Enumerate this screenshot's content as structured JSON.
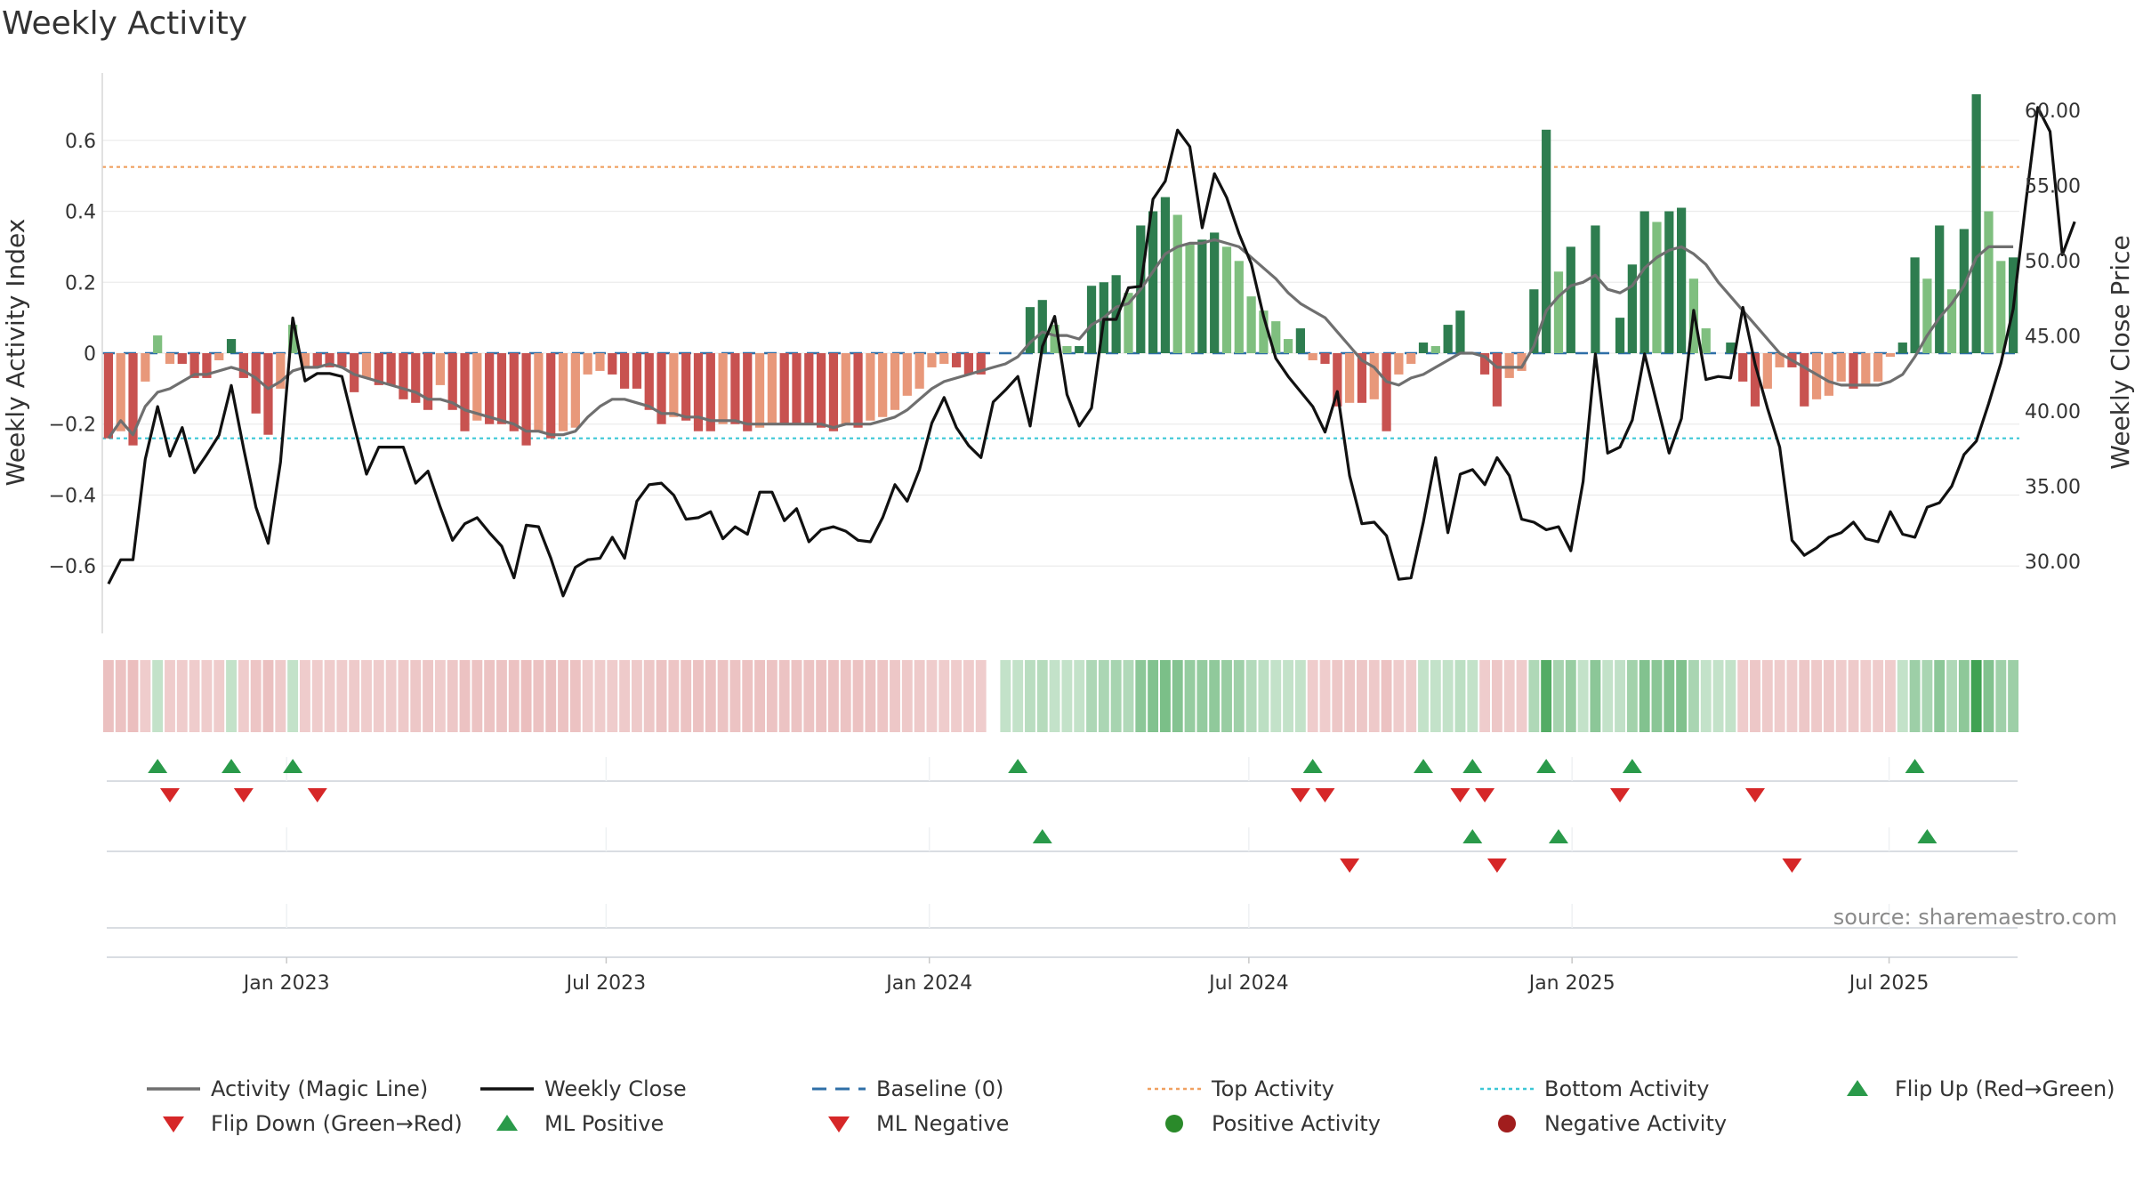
{
  "chart_data": {
    "type": "bar",
    "title": "Weekly Activity",
    "ylabel": "Weekly Activity Index",
    "y2label": "Weekly Close Price",
    "ylim": [
      -0.79,
      0.79
    ],
    "y2lim": [
      25.2,
      62.5
    ],
    "yticks": [
      -0.6,
      -0.4,
      -0.2,
      0,
      0.2,
      0.4,
      0.6
    ],
    "ytick_labels": [
      "−0.6",
      "−0.4",
      "−0.2",
      "0",
      "0.2",
      "0.4",
      "0.6"
    ],
    "y2ticks": [
      30,
      35,
      40,
      45,
      50,
      55,
      60
    ],
    "y2tick_labels": [
      "30.00",
      "35.00",
      "40.00",
      "45.00",
      "50.00",
      "55.00",
      "60.00"
    ],
    "x_range_weeks": [
      0,
      156
    ],
    "x_ticks": [
      {
        "label": "Jan 2023",
        "week": 15
      },
      {
        "label": "Jul 2023",
        "week": 41
      },
      {
        "label": "Jan 2024",
        "week": 67.3
      },
      {
        "label": "Jul 2024",
        "week": 93.3
      },
      {
        "label": "Jan 2025",
        "week": 119.6
      },
      {
        "label": "Jul 2025",
        "week": 145.4
      }
    ],
    "top_activity": 0.525,
    "bottom_activity": -0.24,
    "baseline": 0,
    "activity_weekly": [
      -0.24,
      -0.22,
      -0.26,
      -0.08,
      0.05,
      -0.03,
      -0.03,
      -0.07,
      -0.07,
      -0.02,
      0.04,
      -0.07,
      -0.17,
      -0.23,
      -0.1,
      0.08,
      -0.04,
      -0.04,
      -0.04,
      -0.04,
      -0.11,
      -0.07,
      -0.09,
      -0.09,
      -0.13,
      -0.14,
      -0.16,
      -0.09,
      -0.16,
      -0.22,
      -0.19,
      -0.2,
      -0.2,
      -0.22,
      -0.26,
      -0.22,
      -0.24,
      -0.22,
      -0.21,
      -0.06,
      -0.05,
      -0.06,
      -0.1,
      -0.1,
      -0.16,
      -0.2,
      -0.18,
      -0.19,
      -0.22,
      -0.22,
      -0.2,
      -0.2,
      -0.22,
      -0.21,
      -0.2,
      -0.2,
      -0.2,
      -0.2,
      -0.21,
      -0.22,
      -0.2,
      -0.21,
      -0.19,
      -0.18,
      -0.16,
      -0.12,
      -0.1,
      -0.04,
      -0.03,
      -0.04,
      -0.06,
      -0.06,
      null,
      0.0,
      0.0,
      0.13,
      0.15,
      0.08,
      0.02,
      0.02,
      0.19,
      0.2,
      0.22,
      0.17,
      0.36,
      0.4,
      0.44,
      0.39,
      0.31,
      0.32,
      0.34,
      0.3,
      0.26,
      0.16,
      0.12,
      0.09,
      0.04,
      0.07,
      -0.02,
      -0.03,
      -0.15,
      -0.14,
      -0.14,
      -0.13,
      -0.22,
      -0.06,
      -0.03,
      0.03,
      0.02,
      0.08,
      0.12,
      0.0,
      -0.06,
      -0.15,
      -0.07,
      -0.05,
      0.18,
      0.63,
      0.23,
      0.3,
      0.0,
      0.36,
      0.0,
      0.1,
      0.25,
      0.4,
      0.37,
      0.4,
      0.41,
      0.21,
      0.07,
      0.0,
      0.03,
      -0.08,
      -0.15,
      -0.1,
      -0.04,
      -0.04,
      -0.15,
      -0.13,
      -0.12,
      -0.08,
      -0.1,
      -0.09,
      -0.08,
      -0.01,
      0.03,
      0.27,
      0.21,
      0.36,
      0.18,
      0.35,
      0.73,
      0.4,
      0.26,
      0.27
    ],
    "magic_line_weekly": [
      -0.24,
      -0.19,
      -0.23,
      -0.15,
      -0.11,
      -0.1,
      -0.08,
      -0.06,
      -0.06,
      -0.05,
      -0.04,
      -0.05,
      -0.07,
      -0.1,
      -0.08,
      -0.05,
      -0.04,
      -0.04,
      -0.03,
      -0.04,
      -0.06,
      -0.07,
      -0.08,
      -0.09,
      -0.1,
      -0.11,
      -0.13,
      -0.13,
      -0.14,
      -0.16,
      -0.17,
      -0.18,
      -0.19,
      -0.2,
      -0.22,
      -0.22,
      -0.23,
      -0.23,
      -0.22,
      -0.18,
      -0.15,
      -0.13,
      -0.13,
      -0.14,
      -0.15,
      -0.17,
      -0.17,
      -0.18,
      -0.18,
      -0.19,
      -0.19,
      -0.19,
      -0.2,
      -0.2,
      -0.2,
      -0.2,
      -0.2,
      -0.2,
      -0.2,
      -0.21,
      -0.2,
      -0.2,
      -0.2,
      -0.19,
      -0.18,
      -0.16,
      -0.13,
      -0.1,
      -0.08,
      -0.07,
      -0.06,
      -0.05,
      -0.04,
      -0.03,
      -0.01,
      0.03,
      0.06,
      0.05,
      0.05,
      0.04,
      0.08,
      0.1,
      0.13,
      0.14,
      0.18,
      0.23,
      0.28,
      0.3,
      0.31,
      0.31,
      0.32,
      0.31,
      0.3,
      0.27,
      0.24,
      0.21,
      0.17,
      0.14,
      0.12,
      0.1,
      0.06,
      0.02,
      -0.02,
      -0.04,
      -0.08,
      -0.09,
      -0.07,
      -0.06,
      -0.04,
      -0.02,
      0.0,
      0.0,
      -0.01,
      -0.04,
      -0.04,
      -0.04,
      0.02,
      0.12,
      0.16,
      0.19,
      0.2,
      0.22,
      0.18,
      0.17,
      0.19,
      0.24,
      0.27,
      0.29,
      0.3,
      0.28,
      0.25,
      0.2,
      0.16,
      0.12,
      0.08,
      0.04,
      0.0,
      -0.02,
      -0.04,
      -0.06,
      -0.08,
      -0.09,
      -0.09,
      -0.09,
      -0.09,
      -0.08,
      -0.06,
      -0.01,
      0.05,
      0.1,
      0.14,
      0.19,
      0.27,
      0.3,
      0.3,
      0.3
    ],
    "weekly_close": [
      28.5,
      30.1,
      30.1,
      36.8,
      40.3,
      37,
      38.9,
      35.9,
      37.1,
      38.4,
      41.7,
      37.5,
      33.6,
      31.2,
      36.6,
      46.2,
      42,
      42.5,
      42.5,
      42.3,
      39,
      35.8,
      37.6,
      37.6,
      37.6,
      35.2,
      36,
      33.6,
      31.4,
      32.5,
      32.9,
      31.9,
      31,
      28.9,
      32.4,
      32.3,
      30.2,
      27.7,
      29.6,
      30.1,
      30.2,
      31.6,
      30.2,
      34,
      35.1,
      35.2,
      34.4,
      32.8,
      32.9,
      33.3,
      31.5,
      32.3,
      31.8,
      34.6,
      34.6,
      32.7,
      33.5,
      31.3,
      32.1,
      32.3,
      32,
      31.4,
      31.3,
      32.9,
      35.1,
      34,
      36.1,
      39.2,
      40.9,
      38.9,
      37.7,
      36.9,
      40.6,
      41.4,
      42.3,
      39,
      44.3,
      46.3,
      41.1,
      39,
      40.2,
      46.1,
      46.1,
      48.2,
      48.3,
      54.1,
      55.3,
      58.7,
      57.6,
      52.2,
      55.8,
      54.2,
      51.8,
      49.8,
      46.3,
      43.5,
      42.3,
      41.3,
      40.3,
      38.6,
      41.3,
      35.7,
      32.5,
      32.6,
      31.7,
      28.8,
      28.9,
      32.6,
      36.9,
      31.9,
      35.8,
      36.1,
      35.1,
      36.9,
      35.7,
      32.8,
      32.6,
      32.1,
      32.3,
      30.7,
      35.3,
      43.8,
      37.2,
      37.6,
      39.4,
      43.8,
      40.5,
      37.2,
      39.5,
      46.7,
      42.1,
      42.3,
      42.2,
      46.9,
      43.1,
      40.2,
      37.6,
      31.4,
      30.4,
      30.9,
      31.6,
      31.9,
      32.6,
      31.5,
      31.3,
      33.3,
      31.8,
      31.6,
      33.6,
      33.9,
      35,
      37.1,
      38,
      40.5,
      43.2,
      46.8,
      53.7,
      60.2,
      58.6,
      50.4,
      52.6
    ],
    "positive_activity_weeks": [
      4,
      10,
      15,
      75,
      76,
      77,
      78,
      79,
      80,
      81,
      82,
      83,
      84,
      85,
      86,
      87,
      88,
      89,
      90,
      91,
      92,
      93,
      94,
      95,
      96,
      97,
      99,
      106,
      107,
      108,
      109,
      110,
      111,
      115,
      116,
      117,
      118,
      119,
      120,
      121,
      122,
      123,
      124,
      125,
      126,
      127,
      128,
      129,
      130,
      131,
      132,
      133,
      147,
      148,
      149,
      150,
      151,
      152,
      153,
      154,
      155,
      156
    ],
    "flip_up_weeks": [
      4,
      10,
      15,
      74,
      98,
      107,
      111,
      117,
      124,
      147
    ],
    "flip_down_weeks": [
      5,
      11,
      17,
      97,
      99,
      110,
      112,
      123,
      134
    ],
    "ml_positive_weeks": [
      76,
      111,
      118,
      148
    ],
    "ml_negative_weeks": [
      101,
      113,
      137
    ],
    "source": "source: sharemaestro.com",
    "legend_position": "bottom",
    "legend": [
      {
        "label": "Activity (Magic Line)",
        "kind": "line",
        "color": "#6f6f6f"
      },
      {
        "label": "Weekly Close",
        "kind": "line",
        "color": "#111111"
      },
      {
        "label": "Baseline (0)",
        "kind": "dashed",
        "color": "#2f6fa7"
      },
      {
        "label": "Top Activity",
        "kind": "dotted",
        "color": "#f0a060"
      },
      {
        "label": "Bottom Activity",
        "kind": "dotted",
        "color": "#3cc7d6"
      },
      {
        "label": "Flip Up (Red→Green)",
        "kind": "tri-up",
        "color": "#2a9a4a"
      },
      {
        "label": "Flip Down (Green→Red)",
        "kind": "tri-down",
        "color": "#d62728"
      },
      {
        "label": "ML Positive",
        "kind": "tri-up",
        "color": "#2a9a4a"
      },
      {
        "label": "ML Negative",
        "kind": "tri-down",
        "color": "#d62728"
      },
      {
        "label": "Positive Activity",
        "kind": "dot",
        "color": "#2a8a2a"
      },
      {
        "label": "Negative Activity",
        "kind": "dot",
        "color": "#a11d1d"
      }
    ],
    "colors": {
      "pos_strong": "#2e7d4f",
      "pos_light": "#7fbf7f",
      "neg_strong": "#c85250",
      "neg_light": "#e8987a",
      "up_marker": "#2a9a4a",
      "down_marker": "#d62728",
      "magic_line": "#6f6f6f",
      "close_line": "#111111",
      "top_line": "#f0a060",
      "bottom_line": "#3cc7d6",
      "baseline": "#2f6fa7"
    }
  }
}
